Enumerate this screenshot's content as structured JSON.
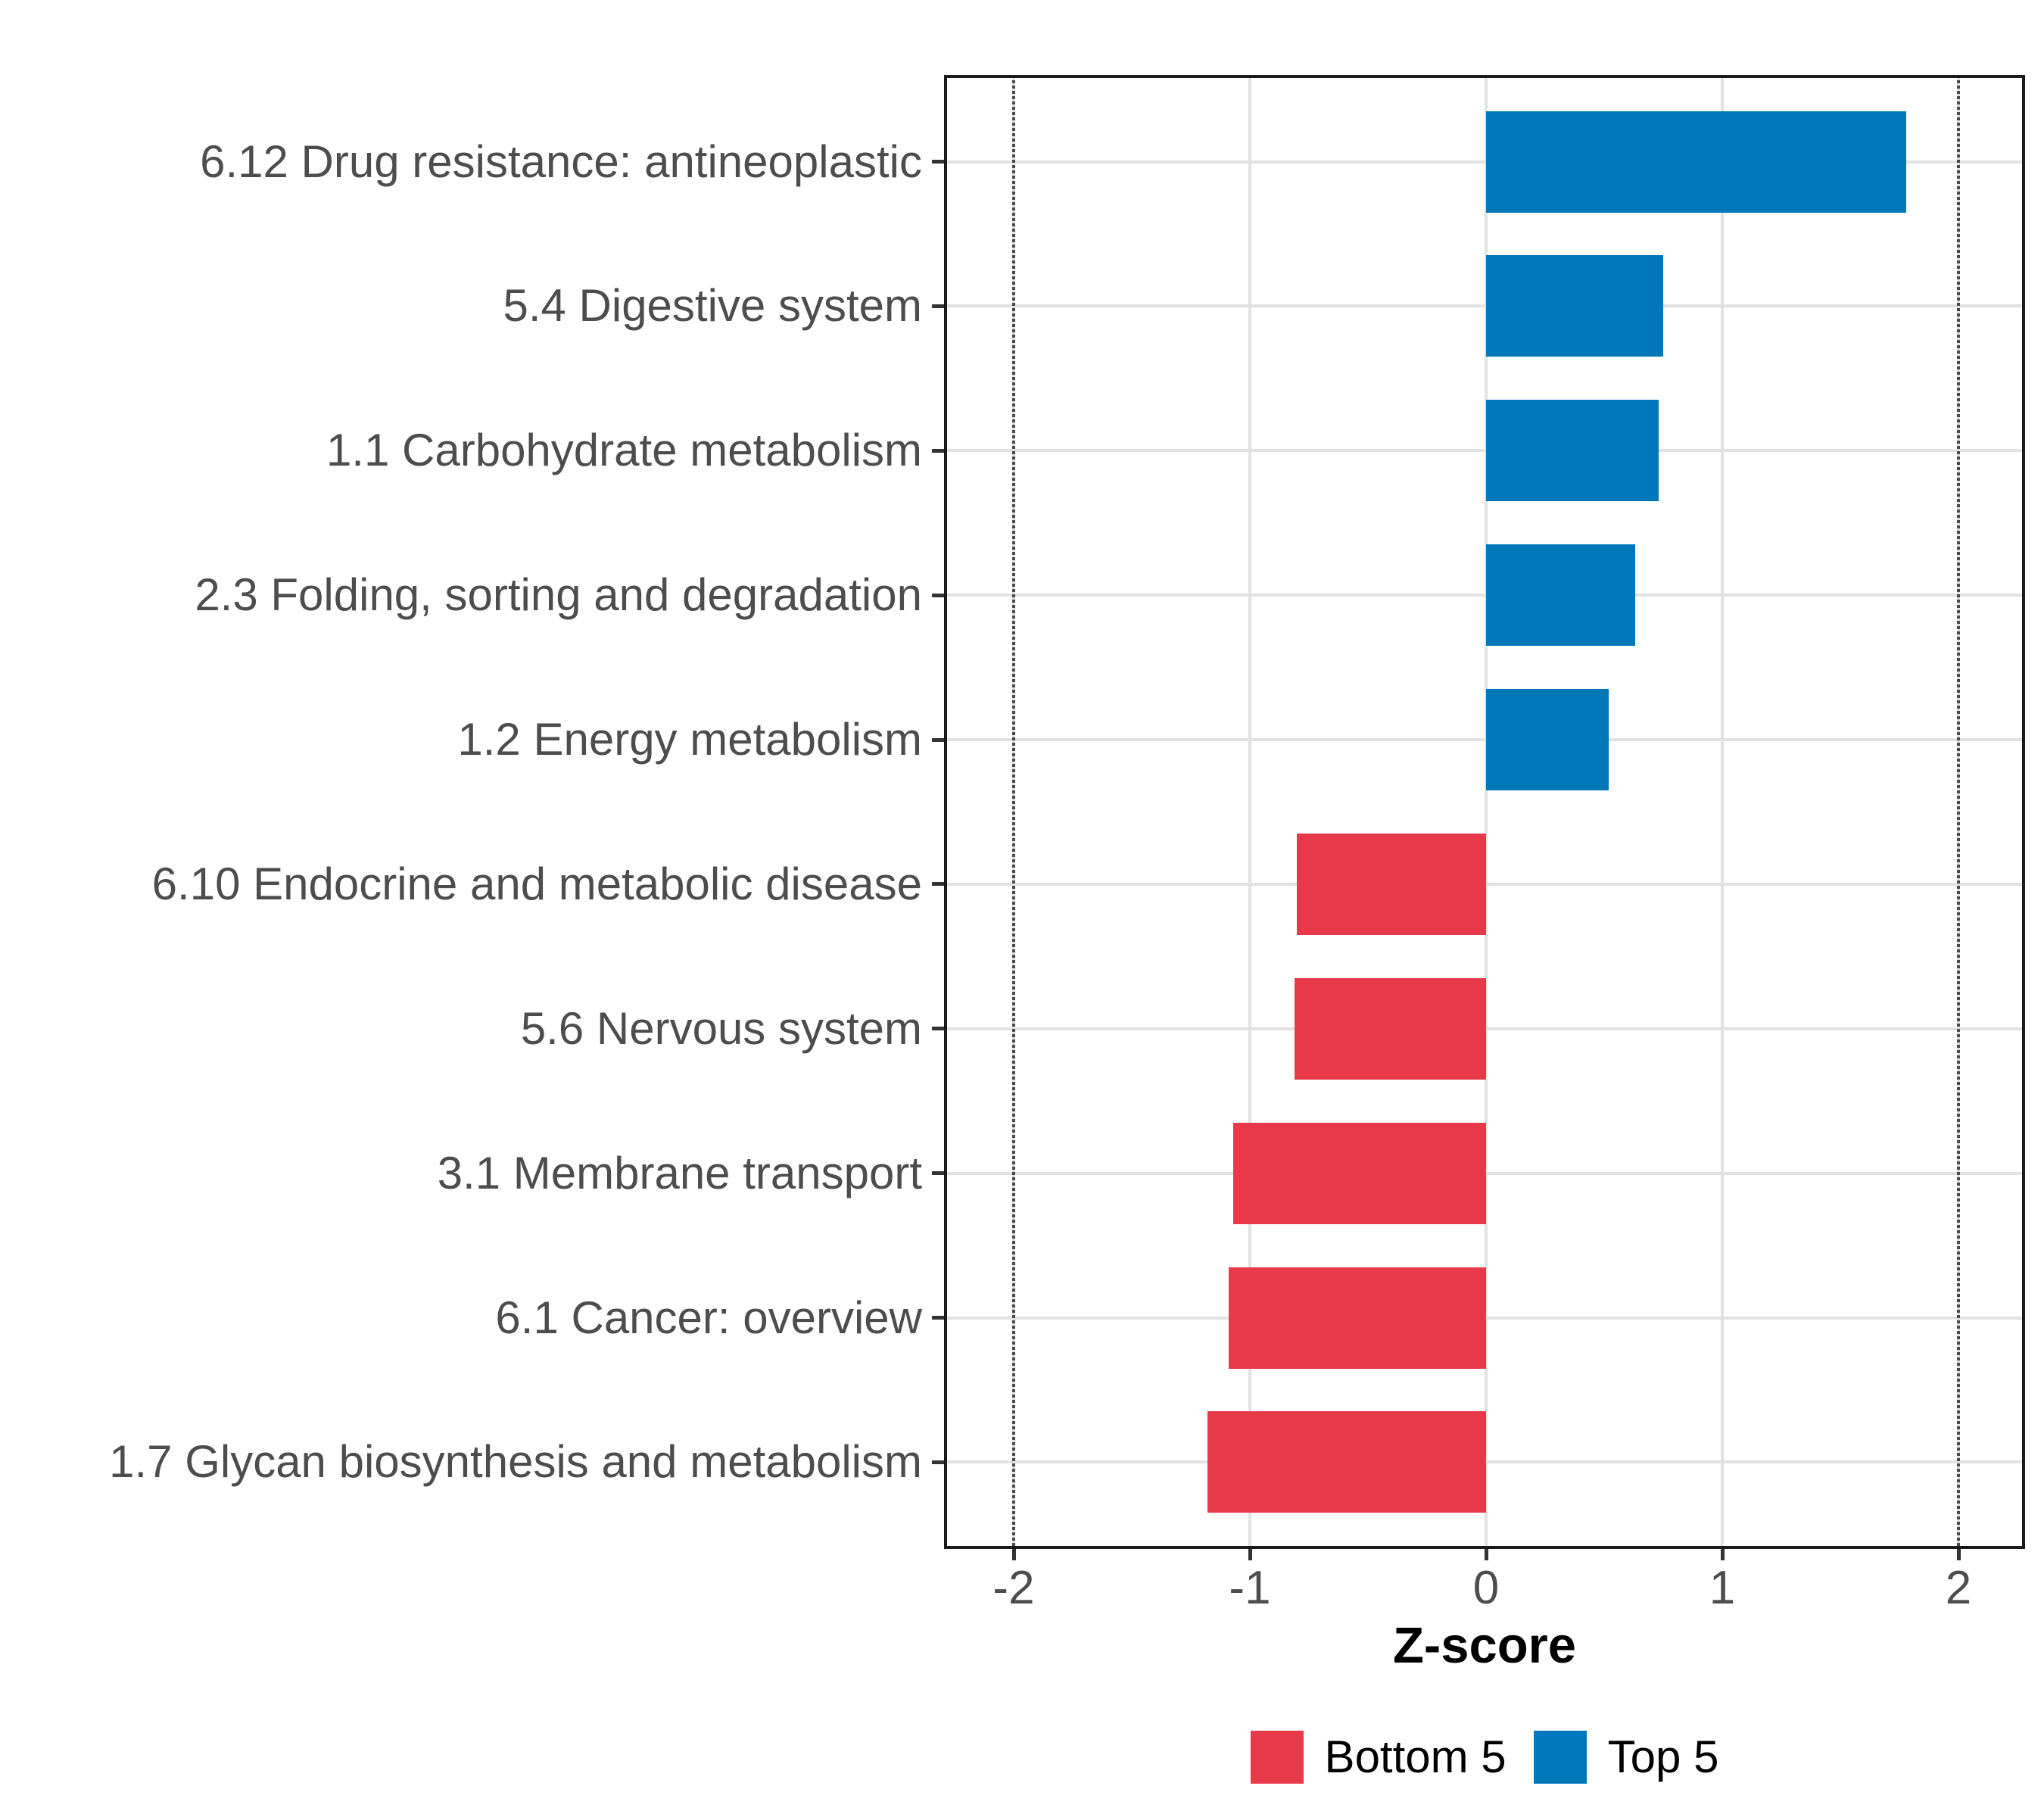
{
  "chart_data": {
    "type": "bar",
    "orientation": "horizontal",
    "title": "",
    "xlabel": "Z-score",
    "ylabel": "",
    "categories": [
      "6.12 Drug resistance: antineoplastic",
      "5.4 Digestive system",
      "1.1 Carbohydrate metabolism",
      "2.3 Folding, sorting and degradation",
      "1.2 Energy metabolism",
      "6.10 Endocrine and metabolic disease",
      "5.6 Nervous system",
      "3.1 Membrane transport",
      "6.1 Cancer: overview",
      "1.7 Glycan biosynthesis and metabolism"
    ],
    "values": [
      1.78,
      0.75,
      0.73,
      0.63,
      0.52,
      -0.8,
      -0.81,
      -1.07,
      -1.09,
      -1.18
    ],
    "groups": [
      "Top 5",
      "Top 5",
      "Top 5",
      "Top 5",
      "Top 5",
      "Bottom 5",
      "Bottom 5",
      "Bottom 5",
      "Bottom 5",
      "Bottom 5"
    ],
    "group_colors": {
      "Bottom 5": "#e8394a",
      "Top 5": "#0077b8"
    },
    "x_ticks": [
      "-2",
      "-1",
      "0",
      "1",
      "2"
    ],
    "x_tick_values": [
      -2,
      -1,
      0,
      1,
      2
    ],
    "xlim": [
      -2.29,
      2.29
    ],
    "reference_lines_x": [
      -2,
      2
    ],
    "reference_line_style": "dotted",
    "grid": "major",
    "legend_position": "bottom",
    "legend": {
      "entries": [
        {
          "label": "Bottom 5",
          "color": "#e8394a"
        },
        {
          "label": "Top 5",
          "color": "#0077b8"
        }
      ]
    }
  },
  "colors": {
    "panel_background": "#ffffff",
    "panel_border": "#1a1a1a",
    "grid": "#e2e2e2",
    "reference_line": "#4a4a4a",
    "axis_text": "#4d4d4d",
    "tick_mark": "#333333",
    "axis_title": "#000000"
  }
}
